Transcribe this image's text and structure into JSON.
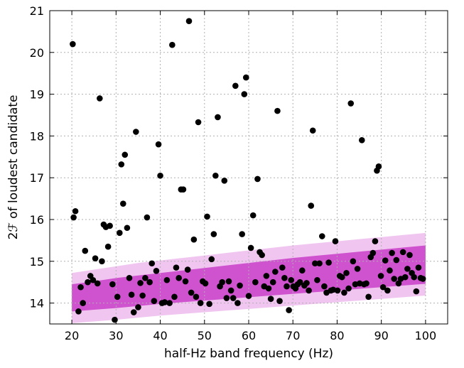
{
  "chart_data": {
    "type": "scatter",
    "xlabel": "half-Hz band frequency (Hz)",
    "ylabel": "2ℱ of loudest candidate",
    "xlim": [
      15,
      105
    ],
    "ylim": [
      13.5,
      21
    ],
    "xticks": [
      20,
      30,
      40,
      50,
      60,
      70,
      80,
      90,
      100
    ],
    "yticks": [
      14,
      15,
      16,
      17,
      18,
      19,
      20,
      21
    ],
    "xtick_labels": [
      "20",
      "30",
      "40",
      "50",
      "60",
      "70",
      "80",
      "90",
      "100"
    ],
    "ytick_labels": [
      "14",
      "15",
      "16",
      "17",
      "18",
      "19",
      "20",
      "21"
    ],
    "grid": true,
    "colors": {
      "points": "#000000",
      "band_outer": "#f0c6f0",
      "band_inner": "#cf52cf",
      "grid": "#b0b0b0"
    },
    "bands": [
      {
        "x": [
          20,
          25,
          30,
          35,
          40,
          45,
          50,
          55,
          60,
          65,
          70,
          75,
          80,
          85,
          90,
          95,
          100
        ],
        "lower": [
          13.52,
          13.56,
          13.6,
          13.65,
          13.7,
          13.74,
          13.78,
          13.82,
          13.86,
          13.9,
          13.94,
          13.98,
          14.02,
          14.06,
          14.1,
          14.14,
          14.18
        ],
        "upper": [
          14.72,
          14.8,
          14.88,
          14.96,
          15.02,
          15.08,
          15.14,
          15.2,
          15.26,
          15.32,
          15.38,
          15.43,
          15.48,
          15.53,
          15.58,
          15.63,
          15.68
        ]
      },
      {
        "x": [
          20,
          25,
          30,
          35,
          40,
          45,
          50,
          55,
          60,
          65,
          70,
          75,
          80,
          85,
          90,
          95,
          100
        ],
        "lower": [
          13.8,
          13.84,
          13.88,
          13.93,
          13.98,
          14.02,
          14.06,
          14.1,
          14.14,
          14.18,
          14.22,
          14.26,
          14.3,
          14.34,
          14.38,
          14.42,
          14.46
        ],
        "upper": [
          14.45,
          14.52,
          14.6,
          14.66,
          14.72,
          14.78,
          14.84,
          14.9,
          14.96,
          15.02,
          15.08,
          15.13,
          15.18,
          15.23,
          15.28,
          15.33,
          15.38
        ]
      }
    ],
    "points": [
      {
        "x": 20.2,
        "y": 20.2
      },
      {
        "x": 20.4,
        "y": 16.05
      },
      {
        "x": 20.8,
        "y": 16.2
      },
      {
        "x": 21.5,
        "y": 13.8
      },
      {
        "x": 22.0,
        "y": 14.38
      },
      {
        "x": 22.5,
        "y": 14.0
      },
      {
        "x": 23.0,
        "y": 15.25
      },
      {
        "x": 23.6,
        "y": 14.5
      },
      {
        "x": 24.2,
        "y": 14.65
      },
      {
        "x": 24.8,
        "y": 14.55
      },
      {
        "x": 25.3,
        "y": 15.07
      },
      {
        "x": 25.8,
        "y": 14.47
      },
      {
        "x": 26.3,
        "y": 18.9
      },
      {
        "x": 26.8,
        "y": 15.0
      },
      {
        "x": 27.2,
        "y": 15.88
      },
      {
        "x": 27.7,
        "y": 15.82
      },
      {
        "x": 28.2,
        "y": 15.35
      },
      {
        "x": 28.6,
        "y": 15.85
      },
      {
        "x": 29.2,
        "y": 14.45
      },
      {
        "x": 29.7,
        "y": 13.6
      },
      {
        "x": 30.3,
        "y": 14.15
      },
      {
        "x": 30.8,
        "y": 15.68
      },
      {
        "x": 31.2,
        "y": 17.32
      },
      {
        "x": 31.6,
        "y": 16.38
      },
      {
        "x": 32.0,
        "y": 17.55
      },
      {
        "x": 32.5,
        "y": 15.8
      },
      {
        "x": 33.0,
        "y": 14.6
      },
      {
        "x": 33.5,
        "y": 14.2
      },
      {
        "x": 34.0,
        "y": 13.78
      },
      {
        "x": 34.5,
        "y": 18.1
      },
      {
        "x": 35.0,
        "y": 13.9
      },
      {
        "x": 35.5,
        "y": 14.48
      },
      {
        "x": 36.0,
        "y": 14.18
      },
      {
        "x": 36.6,
        "y": 14.6
      },
      {
        "x": 37.0,
        "y": 16.05
      },
      {
        "x": 37.6,
        "y": 14.5
      },
      {
        "x": 38.1,
        "y": 14.95
      },
      {
        "x": 38.6,
        "y": 14.05
      },
      {
        "x": 39.1,
        "y": 14.77
      },
      {
        "x": 39.6,
        "y": 17.8
      },
      {
        "x": 40.0,
        "y": 17.05
      },
      {
        "x": 40.4,
        "y": 14.0
      },
      {
        "x": 41.0,
        "y": 14.02
      },
      {
        "x": 41.5,
        "y": 14.55
      },
      {
        "x": 42.1,
        "y": 14.0
      },
      {
        "x": 42.7,
        "y": 20.18
      },
      {
        "x": 43.2,
        "y": 14.15
      },
      {
        "x": 43.6,
        "y": 14.85
      },
      {
        "x": 44.2,
        "y": 14.6
      },
      {
        "x": 44.7,
        "y": 16.72
      },
      {
        "x": 45.2,
        "y": 16.72
      },
      {
        "x": 45.7,
        "y": 14.52
      },
      {
        "x": 46.2,
        "y": 14.8
      },
      {
        "x": 46.5,
        "y": 20.75
      },
      {
        "x": 47.0,
        "y": 14.25
      },
      {
        "x": 47.6,
        "y": 15.52
      },
      {
        "x": 48.1,
        "y": 14.15
      },
      {
        "x": 48.6,
        "y": 18.33
      },
      {
        "x": 49.1,
        "y": 14.0
      },
      {
        "x": 49.6,
        "y": 14.52
      },
      {
        "x": 50.2,
        "y": 14.47
      },
      {
        "x": 50.6,
        "y": 16.07
      },
      {
        "x": 51.1,
        "y": 13.98
      },
      {
        "x": 51.6,
        "y": 15.05
      },
      {
        "x": 52.1,
        "y": 15.65
      },
      {
        "x": 52.5,
        "y": 17.05
      },
      {
        "x": 53.0,
        "y": 18.45
      },
      {
        "x": 53.5,
        "y": 14.4
      },
      {
        "x": 54.0,
        "y": 14.5
      },
      {
        "x": 54.5,
        "y": 16.93
      },
      {
        "x": 55.0,
        "y": 14.12
      },
      {
        "x": 55.5,
        "y": 14.52
      },
      {
        "x": 56.0,
        "y": 14.3
      },
      {
        "x": 56.5,
        "y": 14.12
      },
      {
        "x": 57.0,
        "y": 19.2
      },
      {
        "x": 57.5,
        "y": 14.0
      },
      {
        "x": 58.0,
        "y": 14.42
      },
      {
        "x": 58.5,
        "y": 15.65
      },
      {
        "x": 59.0,
        "y": 19.0
      },
      {
        "x": 59.4,
        "y": 19.4
      },
      {
        "x": 60.0,
        "y": 14.17
      },
      {
        "x": 60.5,
        "y": 15.32
      },
      {
        "x": 61.0,
        "y": 16.1
      },
      {
        "x": 61.5,
        "y": 14.5
      },
      {
        "x": 62.0,
        "y": 16.97
      },
      {
        "x": 62.5,
        "y": 15.22
      },
      {
        "x": 63.0,
        "y": 15.15
      },
      {
        "x": 63.5,
        "y": 14.4
      },
      {
        "x": 64.0,
        "y": 14.65
      },
      {
        "x": 64.5,
        "y": 14.35
      },
      {
        "x": 65.0,
        "y": 14.1
      },
      {
        "x": 65.5,
        "y": 14.5
      },
      {
        "x": 66.0,
        "y": 14.75
      },
      {
        "x": 66.5,
        "y": 18.6
      },
      {
        "x": 67.0,
        "y": 14.05
      },
      {
        "x": 67.6,
        "y": 14.85
      },
      {
        "x": 68.1,
        "y": 14.6
      },
      {
        "x": 68.6,
        "y": 14.4
      },
      {
        "x": 69.1,
        "y": 13.83
      },
      {
        "x": 69.6,
        "y": 14.55
      },
      {
        "x": 70.1,
        "y": 14.4
      },
      {
        "x": 70.6,
        "y": 14.35
      },
      {
        "x": 71.1,
        "y": 14.45
      },
      {
        "x": 71.6,
        "y": 14.5
      },
      {
        "x": 72.1,
        "y": 14.78
      },
      {
        "x": 72.6,
        "y": 14.42
      },
      {
        "x": 73.1,
        "y": 14.48
      },
      {
        "x": 73.6,
        "y": 14.3
      },
      {
        "x": 74.1,
        "y": 16.33
      },
      {
        "x": 74.5,
        "y": 18.13
      },
      {
        "x": 75.0,
        "y": 14.95
      },
      {
        "x": 75.5,
        "y": 14.55
      },
      {
        "x": 76.0,
        "y": 14.95
      },
      {
        "x": 76.6,
        "y": 15.6
      },
      {
        "x": 77.1,
        "y": 14.4
      },
      {
        "x": 77.6,
        "y": 14.25
      },
      {
        "x": 78.1,
        "y": 14.97
      },
      {
        "x": 78.6,
        "y": 14.3
      },
      {
        "x": 79.1,
        "y": 14.32
      },
      {
        "x": 79.6,
        "y": 15.48
      },
      {
        "x": 80.1,
        "y": 14.3
      },
      {
        "x": 80.6,
        "y": 14.65
      },
      {
        "x": 81.1,
        "y": 14.62
      },
      {
        "x": 81.6,
        "y": 14.25
      },
      {
        "x": 82.1,
        "y": 14.72
      },
      {
        "x": 82.6,
        "y": 14.35
      },
      {
        "x": 83.1,
        "y": 18.78
      },
      {
        "x": 83.6,
        "y": 15.0
      },
      {
        "x": 84.1,
        "y": 14.45
      },
      {
        "x": 84.6,
        "y": 14.82
      },
      {
        "x": 85.1,
        "y": 14.47
      },
      {
        "x": 85.6,
        "y": 17.9
      },
      {
        "x": 86.1,
        "y": 14.45
      },
      {
        "x": 86.6,
        "y": 14.47
      },
      {
        "x": 87.1,
        "y": 14.15
      },
      {
        "x": 87.6,
        "y": 15.1
      },
      {
        "x": 88.1,
        "y": 15.2
      },
      {
        "x": 88.6,
        "y": 15.48
      },
      {
        "x": 89.0,
        "y": 17.17
      },
      {
        "x": 89.4,
        "y": 17.27
      },
      {
        "x": 89.9,
        "y": 14.65
      },
      {
        "x": 90.4,
        "y": 14.38
      },
      {
        "x": 90.9,
        "y": 15.02
      },
      {
        "x": 91.4,
        "y": 14.3
      },
      {
        "x": 91.9,
        "y": 14.78
      },
      {
        "x": 92.4,
        "y": 15.2
      },
      {
        "x": 92.9,
        "y": 14.58
      },
      {
        "x": 93.4,
        "y": 15.03
      },
      {
        "x": 93.9,
        "y": 14.47
      },
      {
        "x": 94.4,
        "y": 14.58
      },
      {
        "x": 94.9,
        "y": 15.22
      },
      {
        "x": 95.4,
        "y": 14.62
      },
      {
        "x": 95.9,
        "y": 14.82
      },
      {
        "x": 96.4,
        "y": 15.15
      },
      {
        "x": 96.9,
        "y": 14.72
      },
      {
        "x": 97.4,
        "y": 14.62
      },
      {
        "x": 97.9,
        "y": 14.28
      },
      {
        "x": 98.4,
        "y": 14.85
      },
      {
        "x": 98.9,
        "y": 14.6
      },
      {
        "x": 99.4,
        "y": 14.58
      }
    ]
  }
}
